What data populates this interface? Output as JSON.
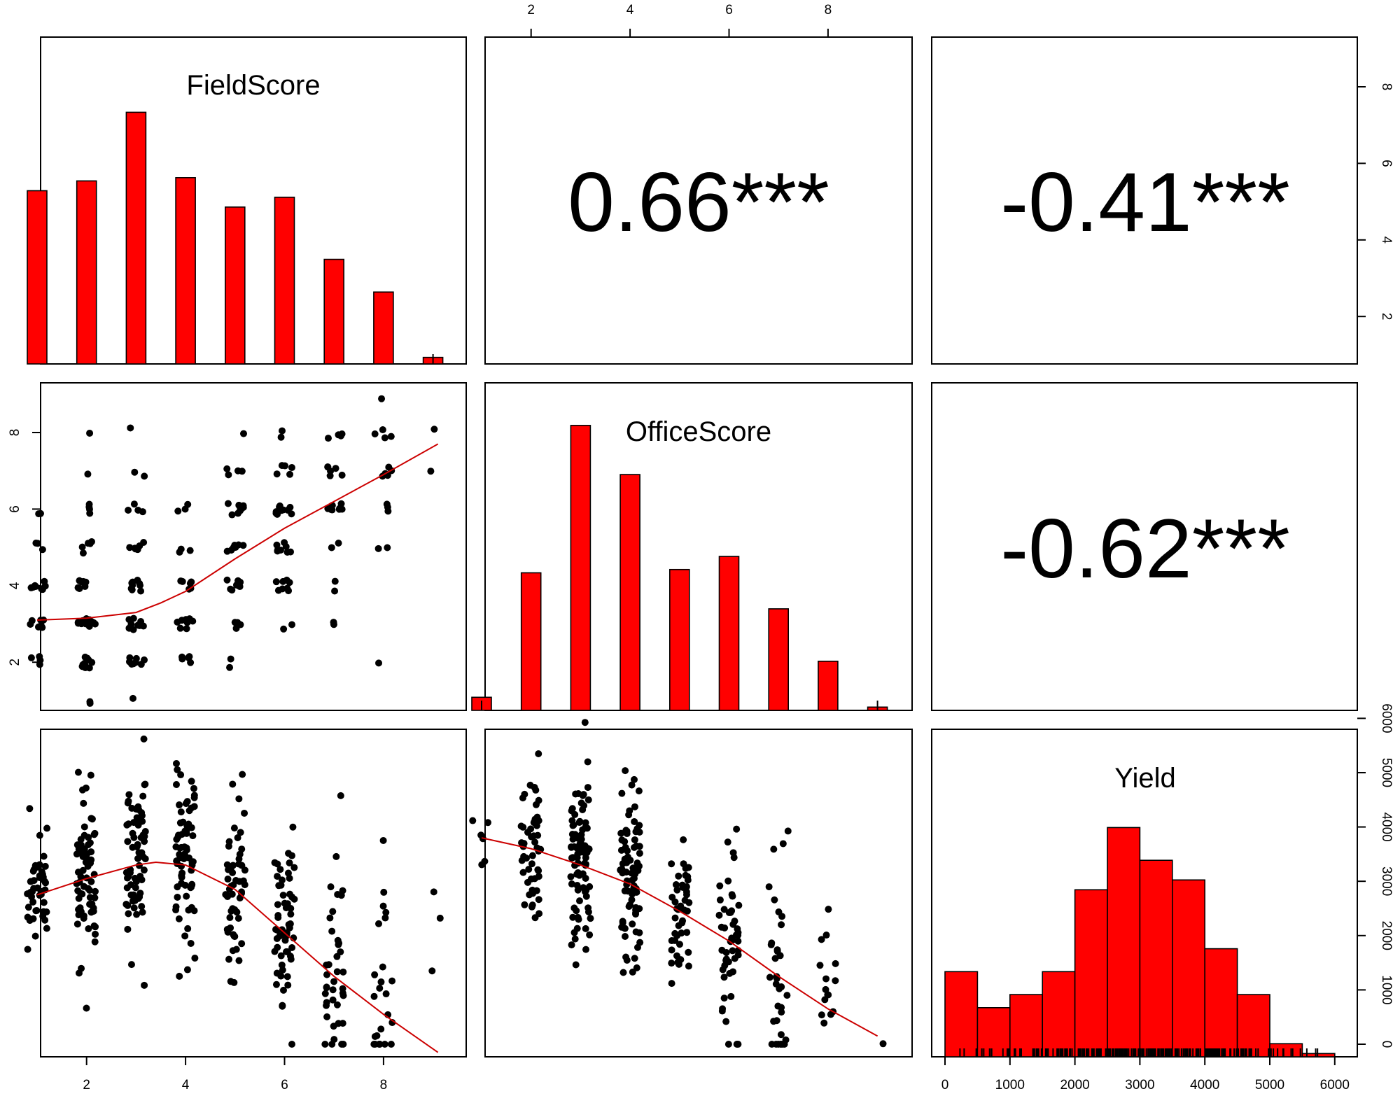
{
  "chart_data": {
    "type": "scatter-matrix",
    "variables": [
      "FieldScore",
      "OfficeScore",
      "Yield"
    ],
    "correlations": [
      {
        "pair": [
          "FieldScore",
          "OfficeScore"
        ],
        "label": "0.66***",
        "r": 0.66
      },
      {
        "pair": [
          "FieldScore",
          "Yield"
        ],
        "label": "-0.41***",
        "r": -0.41
      },
      {
        "pair": [
          "OfficeScore",
          "Yield"
        ],
        "label": "-0.62***",
        "r": -0.62
      }
    ],
    "histograms": {
      "FieldScore": {
        "bins": [
          1,
          2,
          3,
          4,
          5,
          6,
          7,
          8,
          9
        ],
        "heights": [
          0.53,
          0.56,
          0.77,
          0.57,
          0.48,
          0.51,
          0.32,
          0.22,
          0.02
        ]
      },
      "OfficeScore": {
        "bins": [
          1,
          2,
          3,
          4,
          5,
          6,
          7,
          8,
          9
        ],
        "heights": [
          0.04,
          0.42,
          0.87,
          0.72,
          0.43,
          0.47,
          0.31,
          0.15,
          0.01
        ]
      },
      "Yield": {
        "edges": [
          0,
          500,
          1000,
          1500,
          2000,
          2500,
          3000,
          3500,
          4000,
          4500,
          5000,
          5500,
          6000
        ],
        "heights": [
          0.26,
          0.15,
          0.19,
          0.26,
          0.51,
          0.7,
          0.6,
          0.54,
          0.33,
          0.19,
          0.04,
          0.01
        ]
      }
    },
    "smooth_lines": {
      "FieldScore_vs_OfficeScore": {
        "x": [
          1,
          2,
          3,
          3.5,
          4,
          5,
          6,
          7,
          8,
          9.1
        ],
        "y": [
          3.1,
          3.15,
          3.3,
          3.55,
          3.85,
          4.7,
          5.5,
          6.2,
          6.9,
          7.7
        ]
      },
      "FieldScore_vs_Yield": {
        "x": [
          1,
          2,
          3,
          3.4,
          4,
          5,
          6,
          7,
          8,
          9.1
        ],
        "y": [
          2750,
          3050,
          3300,
          3350,
          3300,
          2850,
          2050,
          1250,
          550,
          -150
        ]
      },
      "OfficeScore_vs_Yield": {
        "x": [
          1,
          2,
          3,
          4,
          5,
          6,
          7,
          8,
          9
        ],
        "y": [
          3800,
          3600,
          3300,
          2950,
          2450,
          1900,
          1250,
          650,
          150
        ]
      }
    },
    "axes": {
      "score_ticks": [
        2,
        4,
        6,
        8
      ],
      "yield_ticks": [
        0,
        1000,
        2000,
        3000,
        4000,
        5000,
        6000
      ]
    }
  }
}
